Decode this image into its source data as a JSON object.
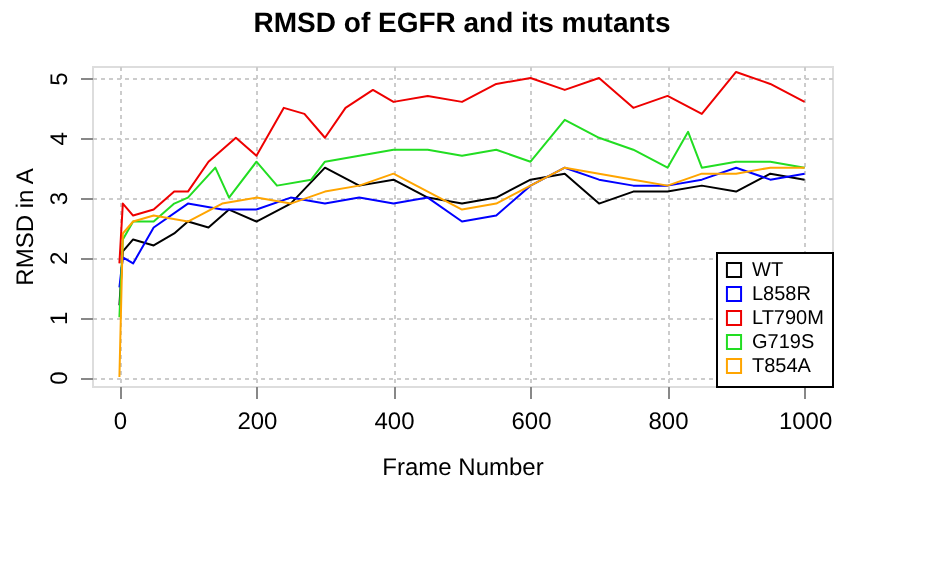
{
  "chart_data": {
    "type": "line",
    "title": "RMSD of EGFR and its mutants",
    "xlabel": "Frame Number",
    "ylabel": "RMSD in A",
    "xlim": [
      -40,
      1040
    ],
    "ylim": [
      -0.15,
      5.2
    ],
    "xticks": [
      0,
      200,
      400,
      600,
      800,
      1000
    ],
    "yticks": [
      0,
      1,
      2,
      3,
      4,
      5
    ],
    "grid": true,
    "legend": "bottom right",
    "line_style": "solid",
    "marker": "none",
    "series": [
      {
        "name": "WT",
        "color": "#000000",
        "x": [
          0,
          5,
          20,
          50,
          80,
          100,
          130,
          160,
          200,
          250,
          300,
          350,
          400,
          450,
          500,
          550,
          600,
          650,
          700,
          750,
          800,
          850,
          900,
          950,
          1000
        ],
        "values": [
          1.2,
          2.1,
          2.3,
          2.2,
          2.4,
          2.6,
          2.5,
          2.8,
          2.6,
          2.9,
          3.5,
          3.2,
          3.3,
          3.0,
          2.9,
          3.0,
          3.3,
          3.4,
          2.9,
          3.1,
          3.1,
          3.2,
          3.1,
          3.4,
          3.3
        ]
      },
      {
        "name": "L858R",
        "color": "#0000ff",
        "x": [
          0,
          5,
          20,
          50,
          100,
          150,
          200,
          250,
          300,
          350,
          400,
          450,
          500,
          550,
          600,
          650,
          700,
          750,
          800,
          850,
          900,
          950,
          1000
        ],
        "values": [
          1.5,
          2.0,
          1.9,
          2.5,
          2.9,
          2.8,
          2.8,
          3.0,
          2.9,
          3.0,
          2.9,
          3.0,
          2.6,
          2.7,
          3.2,
          3.5,
          3.3,
          3.2,
          3.2,
          3.3,
          3.5,
          3.3,
          3.4
        ]
      },
      {
        "name": "LT790M",
        "color": "#ee0000",
        "x": [
          0,
          5,
          20,
          50,
          80,
          100,
          130,
          170,
          200,
          240,
          270,
          300,
          330,
          370,
          400,
          450,
          500,
          550,
          600,
          650,
          700,
          750,
          800,
          850,
          900,
          950,
          1000
        ],
        "values": [
          1.9,
          2.9,
          2.7,
          2.8,
          3.1,
          3.1,
          3.6,
          4.0,
          3.7,
          4.5,
          4.4,
          4.0,
          4.5,
          4.8,
          4.6,
          4.7,
          4.6,
          4.9,
          5.0,
          4.8,
          5.0,
          4.5,
          4.7,
          4.4,
          5.1,
          4.9,
          4.6
        ]
      },
      {
        "name": "G719S",
        "color": "#22dd22",
        "x": [
          0,
          5,
          20,
          50,
          80,
          100,
          140,
          160,
          200,
          230,
          280,
          300,
          350,
          400,
          450,
          500,
          550,
          600,
          650,
          700,
          750,
          800,
          830,
          850,
          900,
          950,
          1000
        ],
        "values": [
          1.0,
          2.3,
          2.6,
          2.6,
          2.9,
          3.0,
          3.5,
          3.0,
          3.6,
          3.2,
          3.3,
          3.6,
          3.7,
          3.8,
          3.8,
          3.7,
          3.8,
          3.6,
          4.3,
          4.0,
          3.8,
          3.5,
          4.1,
          3.5,
          3.6,
          3.6,
          3.5
        ]
      },
      {
        "name": "T854A",
        "color": "#ffa500",
        "x": [
          0,
          5,
          20,
          50,
          100,
          150,
          200,
          250,
          300,
          350,
          400,
          450,
          500,
          550,
          600,
          650,
          700,
          750,
          800,
          850,
          900,
          950,
          1000
        ],
        "values": [
          0.0,
          2.4,
          2.6,
          2.7,
          2.6,
          2.9,
          3.0,
          2.9,
          3.1,
          3.2,
          3.4,
          3.1,
          2.8,
          2.9,
          3.2,
          3.5,
          3.4,
          3.3,
          3.2,
          3.4,
          3.4,
          3.5,
          3.5
        ]
      }
    ]
  }
}
